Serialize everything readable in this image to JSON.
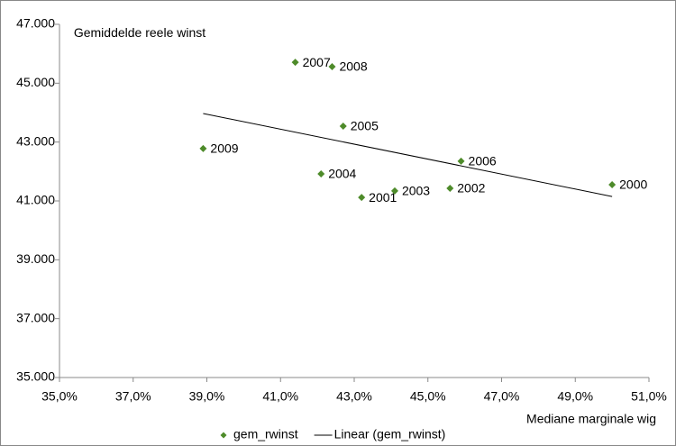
{
  "chart_data": {
    "type": "scatter",
    "y_title": "Gemiddelde reele winst",
    "x_title": "Mediane marginale wig",
    "series": [
      {
        "name": "gem_rwinst",
        "color": "#4e8b2a",
        "x": [
          50.0,
          43.2,
          45.6,
          44.1,
          42.1,
          42.7,
          45.9,
          41.4,
          42.4,
          38.9
        ],
        "values": [
          41550,
          41120,
          41430,
          41340,
          41920,
          43540,
          42350,
          45710,
          45560,
          42780
        ],
        "labels": [
          "2000",
          "2001",
          "2002",
          "2003",
          "2004",
          "2005",
          "2006",
          "2007",
          "2008",
          "2009"
        ]
      },
      {
        "name": "Linear (gem_rwinst)",
        "color": "#000000",
        "kind": "trendline",
        "x": [
          38.9,
          50.0
        ],
        "values": [
          43970,
          41150
        ]
      }
    ],
    "xlim": [
      35,
      51
    ],
    "xticks": [
      {
        "value": 35,
        "label": "35,0%"
      },
      {
        "value": 37,
        "label": "37,0%"
      },
      {
        "value": 39,
        "label": "39,0%"
      },
      {
        "value": 41,
        "label": "41,0%"
      },
      {
        "value": 43,
        "label": "43,0%"
      },
      {
        "value": 45,
        "label": "45,0%"
      },
      {
        "value": 47,
        "label": "47,0%"
      },
      {
        "value": 49,
        "label": "49,0%"
      },
      {
        "value": 51,
        "label": "51,0%"
      }
    ],
    "ylim": [
      35000,
      47000
    ],
    "yticks": [
      {
        "value": 35000,
        "label": "35.000"
      },
      {
        "value": 37000,
        "label": "37.000"
      },
      {
        "value": 39000,
        "label": "39.000"
      },
      {
        "value": 41000,
        "label": "41.000"
      },
      {
        "value": 43000,
        "label": "43.000"
      },
      {
        "value": 45000,
        "label": "45.000"
      },
      {
        "value": 47000,
        "label": "47.000"
      }
    ],
    "grid": false
  }
}
